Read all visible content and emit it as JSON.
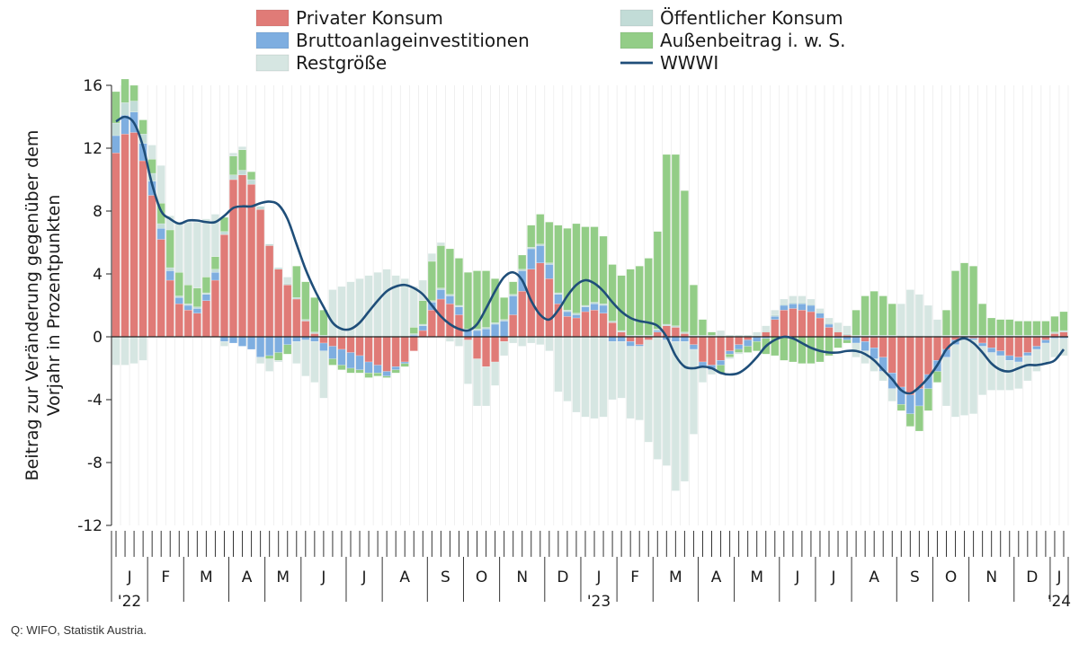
{
  "chart_data": {
    "type": "bar",
    "stacked": true,
    "ylabel": "Beitrag zur Veränderung gegenüber dem Vorjahr in Prozentpunkten",
    "ylim": [
      -12,
      16
    ],
    "yticks": [
      16,
      12,
      8,
      4,
      0,
      -4,
      -8,
      -12
    ],
    "ytick_labels": [
      "16",
      "12",
      "8",
      "4",
      "0",
      "-4",
      "-8",
      "-12"
    ],
    "legend_position": "top",
    "x_count": 106,
    "months": [
      {
        "label": "J",
        "year": "'22",
        "weeks": 4
      },
      {
        "label": "F",
        "weeks": 4
      },
      {
        "label": "M",
        "weeks": 5
      },
      {
        "label": "A",
        "weeks": 4
      },
      {
        "label": "M",
        "weeks": 4
      },
      {
        "label": "J",
        "weeks": 5
      },
      {
        "label": "J",
        "weeks": 4
      },
      {
        "label": "A",
        "weeks": 5
      },
      {
        "label": "S",
        "weeks": 4
      },
      {
        "label": "O",
        "weeks": 4
      },
      {
        "label": "N",
        "weeks": 5
      },
      {
        "label": "D",
        "weeks": 4
      },
      {
        "label": "J",
        "year": "'23",
        "weeks": 4
      },
      {
        "label": "F",
        "weeks": 4
      },
      {
        "label": "M",
        "weeks": 5
      },
      {
        "label": "A",
        "weeks": 4
      },
      {
        "label": "M",
        "weeks": 5
      },
      {
        "label": "J",
        "weeks": 4
      },
      {
        "label": "J",
        "weeks": 4
      },
      {
        "label": "A",
        "weeks": 5
      },
      {
        "label": "S",
        "weeks": 4
      },
      {
        "label": "O",
        "weeks": 4
      },
      {
        "label": "N",
        "weeks": 5
      },
      {
        "label": "D",
        "weeks": 4
      },
      {
        "label": "J",
        "year": "'24",
        "weeks": 2
      }
    ],
    "series": [
      {
        "name": "Privater Konsum",
        "color": "#e07b77",
        "kind": "bar",
        "values": [
          11.7,
          12.9,
          13.0,
          11.2,
          9.0,
          6.2,
          3.6,
          2.1,
          1.7,
          1.5,
          2.3,
          3.6,
          6.5,
          10.0,
          10.3,
          9.7,
          8.1,
          5.8,
          4.3,
          3.3,
          2.4,
          1.0,
          0.2,
          -0.4,
          -0.6,
          -0.8,
          -1.0,
          -1.2,
          -1.6,
          -1.8,
          -2.2,
          -1.9,
          -1.6,
          -0.9,
          0.4,
          1.7,
          2.4,
          2.1,
          1.4,
          -0.2,
          -1.4,
          -1.9,
          -1.6,
          -0.3,
          1.4,
          2.9,
          4.3,
          4.7,
          3.7,
          2.1,
          1.3,
          1.2,
          1.6,
          1.7,
          1.5,
          0.9,
          0.3,
          -0.3,
          -0.5,
          -0.2,
          0.3,
          0.7,
          0.6,
          0.2,
          -0.5,
          -1.6,
          -1.8,
          -1.5,
          -0.9,
          -0.5,
          -0.2,
          0.0,
          0.3,
          1.1,
          1.7,
          1.8,
          1.7,
          1.6,
          1.2,
          0.6,
          0.3,
          0.1,
          0.0,
          -0.3,
          -0.7,
          -1.3,
          -2.3,
          -3.2,
          -3.7,
          -3.3,
          -2.4,
          -1.5,
          -0.8,
          -0.2,
          0.0,
          -0.1,
          -0.4,
          -0.7,
          -0.9,
          -1.2,
          -1.3,
          -1.0,
          -0.6,
          -0.2,
          0.2,
          0.3
        ]
      },
      {
        "name": "Bruttoanlageinvestitionen",
        "color": "#7eaee0",
        "kind": "bar",
        "values": [
          1.1,
          1.2,
          1.3,
          1.1,
          0.9,
          0.7,
          0.6,
          0.4,
          0.3,
          0.3,
          0.4,
          0.5,
          -0.3,
          -0.4,
          -0.6,
          -0.8,
          -1.3,
          -1.2,
          -1.0,
          -0.5,
          -0.3,
          -0.2,
          -0.3,
          -0.5,
          -0.8,
          -1.0,
          -1.0,
          -0.9,
          -0.7,
          -0.5,
          -0.3,
          -0.2,
          -0.1,
          0.1,
          0.3,
          0.5,
          0.6,
          0.5,
          0.5,
          0.4,
          0.4,
          0.5,
          0.8,
          1.0,
          1.2,
          1.3,
          1.3,
          1.1,
          0.9,
          0.6,
          0.3,
          0.2,
          0.3,
          0.4,
          0.5,
          -0.3,
          -0.3,
          -0.3,
          -0.1,
          0.0,
          0.1,
          -0.2,
          -0.3,
          -0.3,
          -0.3,
          -0.3,
          -0.3,
          -0.3,
          -0.2,
          -0.3,
          -0.4,
          -0.3,
          -0.1,
          0.2,
          0.3,
          0.3,
          0.4,
          0.4,
          0.3,
          0.2,
          -0.1,
          -0.2,
          -0.4,
          -0.6,
          -0.7,
          -0.9,
          -1.0,
          -1.1,
          -1.2,
          -1.1,
          -0.9,
          -0.7,
          -0.5,
          -0.3,
          -0.2,
          -0.1,
          -0.2,
          -0.3,
          -0.3,
          -0.3,
          -0.3,
          -0.2,
          -0.2,
          -0.2,
          -0.1,
          -0.1
        ]
      },
      {
        "name": "Öffentlicher Konsum",
        "color": "#c2dcd7",
        "kind": "bar",
        "values": [
          0.8,
          0.8,
          0.7,
          0.6,
          0.5,
          0.3,
          0.2,
          0.1,
          0.1,
          0.1,
          0.1,
          0.2,
          0.2,
          0.3,
          0.3,
          0.3,
          0.2,
          0.1,
          0.1,
          0.1,
          0.1,
          0.1,
          0.1,
          0.1,
          0.1,
          0.1,
          0.1,
          0.1,
          0.1,
          0.1,
          0.1,
          0.1,
          0.1,
          0.1,
          0.1,
          0.1,
          0.1,
          0.1,
          0.1,
          0.1,
          0.1,
          0.1,
          0.1,
          0.1,
          0.1,
          0.1,
          0.1,
          0.1,
          0.1,
          0.1,
          0.1,
          0.1,
          0.1,
          0.1,
          0.1,
          0.1,
          0.1,
          0.1,
          0.1,
          0.1,
          0.1,
          0.1,
          0.1,
          0.1,
          0.1,
          0.1,
          0.1,
          0.1,
          0.1,
          0.1,
          0.1,
          0.1,
          0.1,
          0.1,
          0.1,
          0.1,
          0.1,
          0.1,
          0.1,
          0.1,
          0.1,
          0.1,
          0.1,
          0.1,
          0.1,
          0.1,
          0.1,
          0.1,
          0.1,
          0.1,
          0.1,
          0.1,
          0.1,
          0.1,
          0.1,
          0.1,
          0.1,
          0.1,
          0.1,
          0.1,
          0.1,
          0.1,
          0.1,
          0.1,
          0.1,
          0.1
        ]
      },
      {
        "name": "Außenbeitrag i. w. S.",
        "color": "#93cd87",
        "kind": "bar",
        "values": [
          2.0,
          1.5,
          1.0,
          0.9,
          0.9,
          1.3,
          2.4,
          1.5,
          1.2,
          1.2,
          1.0,
          0.8,
          0.9,
          1.2,
          1.3,
          0.5,
          0.0,
          -0.2,
          -0.5,
          -0.6,
          2.0,
          2.4,
          2.2,
          1.6,
          -0.4,
          -0.3,
          -0.3,
          -0.2,
          -0.3,
          -0.2,
          -0.1,
          -0.2,
          -0.2,
          0.4,
          1.5,
          2.5,
          2.7,
          2.9,
          3.0,
          3.6,
          3.7,
          3.6,
          2.8,
          1.4,
          0.8,
          0.9,
          1.4,
          1.9,
          2.6,
          4.3,
          5.2,
          5.7,
          5.0,
          4.8,
          4.3,
          3.6,
          3.5,
          4.2,
          4.4,
          4.9,
          6.2,
          10.8,
          10.9,
          9.0,
          3.2,
          1.0,
          0.2,
          -0.5,
          -0.2,
          -0.2,
          -0.4,
          -0.6,
          -1.0,
          -1.2,
          -1.5,
          -1.6,
          -1.7,
          -1.7,
          -1.6,
          -1.2,
          -0.6,
          -0.2,
          1.6,
          2.5,
          2.8,
          2.5,
          2.0,
          -0.4,
          -0.8,
          -1.6,
          -1.4,
          -0.7,
          1.6,
          4.1,
          4.6,
          4.4,
          2.0,
          1.1,
          1.0,
          1.0,
          0.9,
          0.9,
          0.9,
          0.9,
          1.0,
          1.2
        ]
      },
      {
        "name": "Restgröße",
        "color": "#d6e6e2",
        "kind": "bar",
        "values": [
          -1.8,
          -1.8,
          -1.7,
          -1.5,
          0.9,
          2.4,
          0.9,
          3.2,
          4.0,
          4.2,
          3.7,
          2.7,
          -0.3,
          0.2,
          0.2,
          0.0,
          -0.4,
          -0.8,
          -0.1,
          0.4,
          -1.4,
          -2.3,
          -2.6,
          -3.0,
          2.9,
          3.1,
          3.4,
          3.6,
          3.8,
          4.0,
          4.2,
          3.8,
          3.6,
          2.6,
          1.3,
          0.5,
          0.2,
          -0.3,
          -0.6,
          -2.8,
          -3.0,
          -2.5,
          -1.5,
          -0.9,
          -0.4,
          -0.6,
          -0.4,
          -0.5,
          -0.9,
          -3.5,
          -4.1,
          -4.8,
          -5.1,
          -5.2,
          -5.1,
          -3.7,
          -3.6,
          -4.6,
          -4.7,
          -6.5,
          -7.8,
          -8.0,
          -9.5,
          -8.9,
          -5.4,
          -1.0,
          -0.3,
          0.3,
          -0.1,
          -0.1,
          0.0,
          0.2,
          0.3,
          0.3,
          0.3,
          0.4,
          0.4,
          0.3,
          0.2,
          0.3,
          0.5,
          0.5,
          -0.9,
          -0.8,
          -0.8,
          -0.6,
          -0.8,
          2.0,
          2.9,
          2.6,
          1.9,
          1.0,
          -3.1,
          -4.6,
          -4.8,
          -4.7,
          -3.1,
          -2.4,
          -2.2,
          -1.9,
          -1.7,
          -1.6,
          -1.4,
          -1.3,
          -1.2,
          -1.1
        ]
      },
      {
        "name": "WWWI",
        "color": "#1f4e79",
        "kind": "line",
        "values": [
          13.7,
          14.0,
          13.6,
          12.1,
          9.7,
          8.0,
          7.5,
          7.2,
          7.4,
          7.4,
          7.3,
          7.3,
          7.7,
          8.2,
          8.3,
          8.3,
          8.5,
          8.6,
          8.4,
          7.5,
          5.9,
          4.3,
          3.0,
          1.9,
          0.9,
          0.5,
          0.5,
          0.9,
          1.6,
          2.3,
          2.9,
          3.2,
          3.3,
          3.1,
          2.7,
          2.0,
          1.3,
          0.8,
          0.5,
          0.4,
          0.8,
          1.8,
          2.9,
          3.8,
          4.1,
          3.6,
          2.3,
          1.4,
          1.1,
          1.7,
          2.6,
          3.3,
          3.6,
          3.4,
          2.9,
          2.2,
          1.6,
          1.2,
          1.0,
          0.9,
          0.7,
          0.0,
          -1.2,
          -1.9,
          -2.0,
          -1.9,
          -2.0,
          -2.3,
          -2.4,
          -2.3,
          -1.9,
          -1.3,
          -0.6,
          -0.2,
          0.0,
          -0.1,
          -0.4,
          -0.7,
          -0.9,
          -1.0,
          -1.0,
          -0.9,
          -0.9,
          -1.1,
          -1.5,
          -2.1,
          -2.7,
          -3.4,
          -3.6,
          -3.2,
          -2.6,
          -1.8,
          -0.8,
          -0.3,
          -0.1,
          -0.4,
          -1.0,
          -1.7,
          -2.1,
          -2.2,
          -2.0,
          -1.8,
          -1.8,
          -1.7,
          -1.5,
          -0.8
        ]
      }
    ]
  },
  "source": "Q: WIFO, Statistik Austria."
}
